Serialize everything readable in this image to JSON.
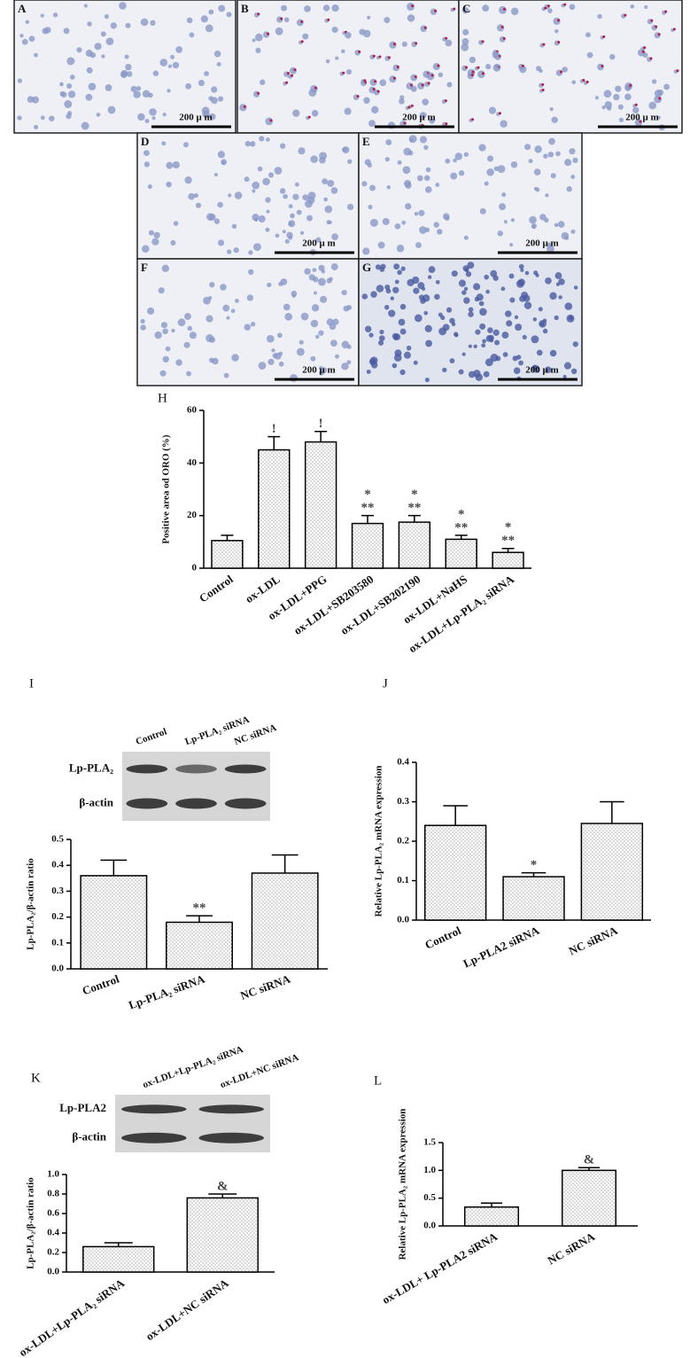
{
  "panels": [
    {
      "label": "A",
      "scale": "200 μ m"
    },
    {
      "label": "B",
      "scale": "200 μ m"
    },
    {
      "label": "C",
      "scale": "200 μ m"
    },
    {
      "label": "D",
      "scale": "200 μ m"
    },
    {
      "label": "E",
      "scale": "200 μ m"
    },
    {
      "label": "F",
      "scale": "200 μ m"
    },
    {
      "label": "G",
      "scale": "200 μ m"
    }
  ],
  "chart_data": [
    {
      "type": "bar",
      "panel": "H",
      "ylabel": "Positive area od ORO (%)",
      "categories": [
        "Control",
        "ox-LDL",
        "ox-LDL+PPG",
        "ox-LDL+SB203580",
        "ox-LDL+SB202190",
        "ox-LDL+NaHS",
        "ox-LDL+Lp-PLA₂ siRNA"
      ],
      "values": [
        10.5,
        45,
        48,
        17,
        17.5,
        11,
        6
      ],
      "errors": [
        2,
        5,
        4,
        3,
        2.5,
        1.5,
        1.5
      ],
      "annotations": [
        null,
        [
          "!"
        ],
        [
          "!"
        ],
        [
          "*",
          "**"
        ],
        [
          "*",
          "**"
        ],
        [
          "*",
          "**"
        ],
        [
          "*",
          "**"
        ]
      ],
      "ylim": [
        0,
        60
      ],
      "yticks": [
        0,
        20,
        40,
        60
      ]
    },
    {
      "type": "bar",
      "panel": "I",
      "ylabel": "Lp-PLA₂/β-actin ratio",
      "blot_columns": [
        "Control",
        "Lp-PLA₂ siRNA",
        "NC siRNA"
      ],
      "blot_rows": [
        "Lp-PLA₂",
        "β-actin"
      ],
      "categories": [
        "Control",
        "Lp-PLA₂ siRNA",
        "NC siRNA"
      ],
      "values": [
        0.36,
        0.18,
        0.37
      ],
      "errors": [
        0.06,
        0.025,
        0.07
      ],
      "annotations": [
        null,
        "**",
        null
      ],
      "ylim": [
        0,
        0.5
      ],
      "yticks": [
        {
          "value": 0,
          "label": "0.0"
        },
        0.1,
        0.2,
        0.3,
        0.4,
        0.5
      ]
    },
    {
      "type": "bar",
      "panel": "J",
      "ylabel": "Relative Lp-PLA₂ mRNA expression",
      "categories": [
        "Control",
        "Lp-PLA2 siRNA",
        "NC siRNA"
      ],
      "values": [
        0.24,
        0.11,
        0.245
      ],
      "errors": [
        0.05,
        0.01,
        0.055
      ],
      "annotations": [
        null,
        "*",
        null
      ],
      "ylim": [
        0,
        0.4
      ],
      "yticks": [
        {
          "value": 0,
          "label": "0.0"
        },
        0.1,
        0.2,
        0.3,
        0.4
      ]
    },
    {
      "type": "bar",
      "panel": "K",
      "ylabel": "Lp-PLA₂/β-actin ratio",
      "blot_columns": [
        "ox-LDL+Lp-PLA₂ siRNA",
        "ox-LDL+NC siRNA"
      ],
      "blot_rows": [
        "Lp-PLA2",
        "β-actin"
      ],
      "categories": [
        "ox-LDL+Lp-PLA₂ siRNA",
        "ox-LDL+NC siRNA"
      ],
      "values": [
        0.26,
        0.76
      ],
      "errors": [
        0.04,
        0.04
      ],
      "annotations": [
        null,
        "&"
      ],
      "ylim": [
        0,
        1.0
      ],
      "yticks": [
        {
          "value": 0,
          "label": "0.0"
        },
        0.2,
        0.4,
        0.6,
        0.8,
        {
          "value": 1,
          "label": "1.0"
        }
      ]
    },
    {
      "type": "bar",
      "panel": "L",
      "ylabel": "Relative Lp-PLA₂ mRNA expression",
      "categories": [
        "ox-LDL+ Lp-PLA2 siRNA",
        "NC siRNA"
      ],
      "values": [
        0.34,
        1.0
      ],
      "errors": [
        0.07,
        0.05
      ],
      "annotations": [
        null,
        "&"
      ],
      "ylim": [
        0,
        1.5
      ],
      "yticks": [
        {
          "value": 0,
          "label": "0.0"
        },
        0.5,
        {
          "value": 1,
          "label": "1.0"
        },
        1.5
      ]
    }
  ]
}
